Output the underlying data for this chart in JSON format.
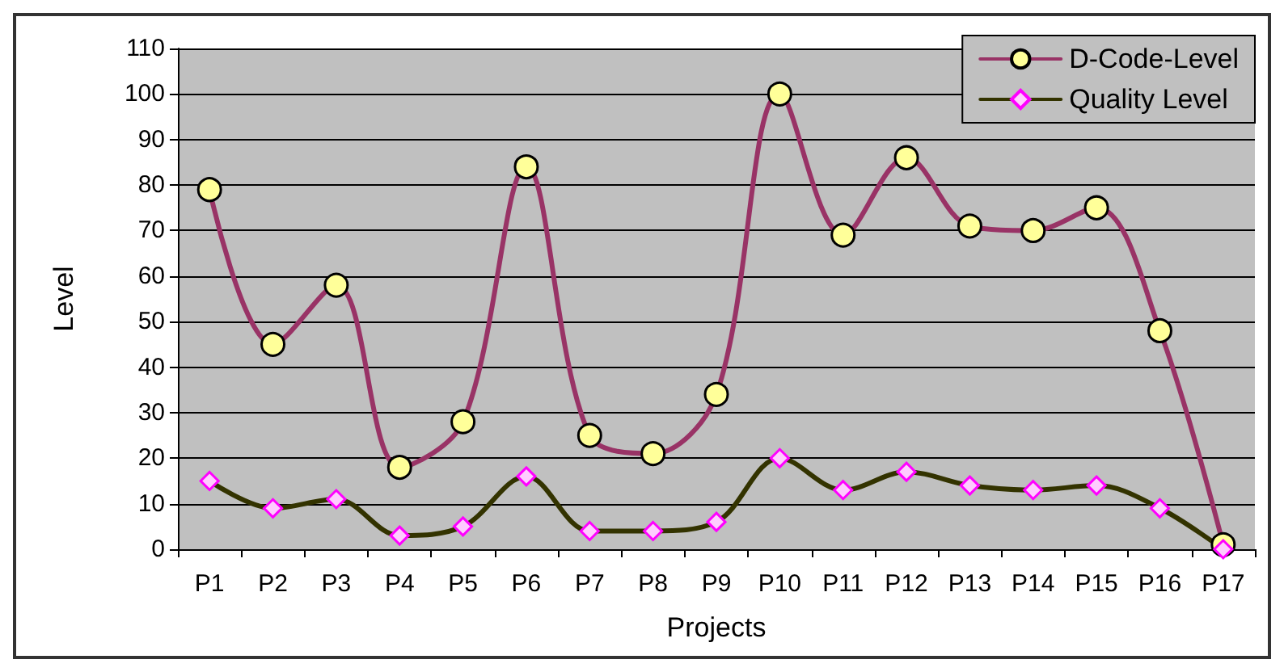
{
  "chart_data": {
    "type": "line",
    "xlabel": "Projects",
    "ylabel": "Level",
    "categories": [
      "P1",
      "P2",
      "P3",
      "P4",
      "P5",
      "P6",
      "P7",
      "P8",
      "P9",
      "P10",
      "P11",
      "P12",
      "P13",
      "P14",
      "P15",
      "P16",
      "P17"
    ],
    "series": [
      {
        "name": "D-Code-Level",
        "color": "#993366",
        "marker": "circle",
        "values": [
          79,
          45,
          58,
          18,
          28,
          84,
          25,
          21,
          34,
          100,
          69,
          86,
          71,
          70,
          75,
          48,
          1
        ]
      },
      {
        "name": "Quality Level",
        "color": "#333300",
        "marker": "diamond",
        "values": [
          15,
          9,
          11,
          3,
          5,
          16,
          4,
          4,
          6,
          20,
          13,
          17,
          14,
          13,
          14,
          9,
          0
        ]
      }
    ],
    "ylim": [
      0,
      110
    ],
    "yticks": [
      0,
      10,
      20,
      30,
      40,
      50,
      60,
      70,
      80,
      90,
      100,
      110
    ],
    "grid": "y",
    "legend": "top right",
    "line_style": "solid"
  }
}
